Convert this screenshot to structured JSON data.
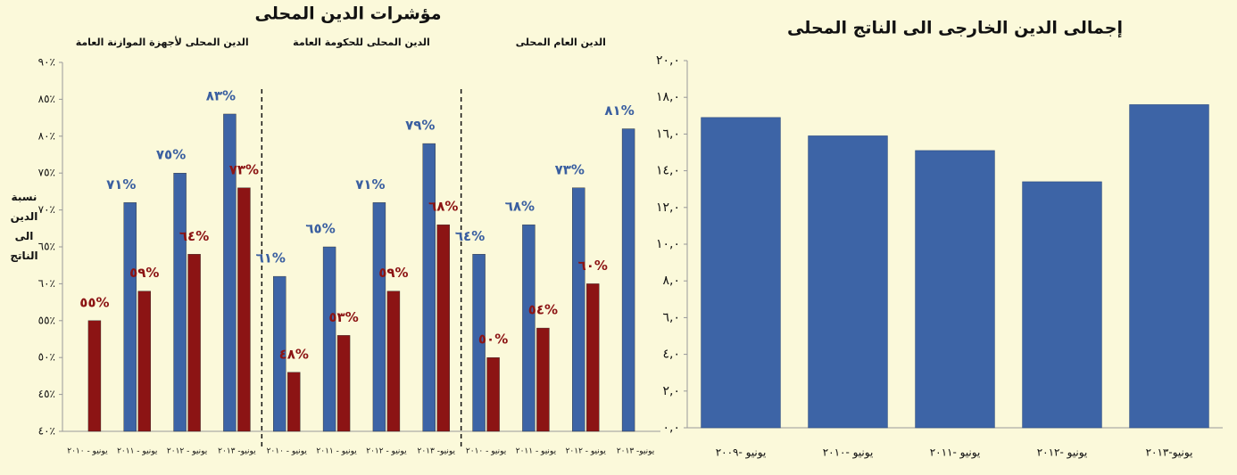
{
  "chart_data": [
    {
      "type": "bar",
      "title": "مؤشرات الدين المحلى",
      "y_label": "نسبة الدين الى الناتج",
      "sections": [
        "الدين المحلى لأجهزة الموازنة العامة",
        "الدين المحلى للحكومة العامة",
        "الدين العام المحلى"
      ],
      "categories": [
        "يونيو - ٢٠١٠",
        "يونيو - ٢٠١١",
        "يونيو - ٢٠١٢",
        "يونيو- ٢٠١٣",
        "يونيو - ٢٠١٠",
        "يونيو - ٢٠١١",
        "يونيو - ٢٠١٢",
        "يونيو- ٢٠١٣",
        "يونيو - ٢٠١٠",
        "يونيو - ٢٠١١",
        "يونيو - ٢٠١٢",
        "يونيو- ٢٠١٣"
      ],
      "series": [
        {
          "color": "#3d64a6",
          "label_color": "#3a5fa0",
          "values": [
            null,
            71,
            75,
            83,
            61,
            65,
            71,
            79,
            64,
            68,
            73,
            81
          ],
          "value_labels": [
            null,
            "٧١%",
            "٧٥%",
            "٨٣%",
            "٦١%",
            "٦٥%",
            "٧١%",
            "٧٩%",
            "٦٤%",
            "٦٨%",
            "٧٣%",
            "٨١%"
          ]
        },
        {
          "color": "#8c1414",
          "label_color": "#8c1414",
          "values": [
            55,
            59,
            64,
            73,
            48,
            53,
            59,
            68,
            50,
            54,
            60,
            null
          ],
          "value_labels": [
            "٥٥%",
            "٥٩%",
            "٦٤%",
            "٧٣%",
            "٤٨%",
            "٥٣%",
            "٥٩%",
            "٦٨%",
            "٥٠%",
            "٥٤%",
            "٦٠%",
            null
          ]
        }
      ],
      "ylim": [
        40,
        90
      ],
      "yticks": [
        {
          "value": 40,
          "label": "٤٠٪"
        },
        {
          "value": 45,
          "label": "٤٥٪"
        },
        {
          "value": 50,
          "label": "٥٠٪"
        },
        {
          "value": 55,
          "label": "٥٥٪"
        },
        {
          "value": 60,
          "label": "٦٠٪"
        },
        {
          "value": 65,
          "label": "٦٥٪"
        },
        {
          "value": 70,
          "label": "٧٠٪"
        },
        {
          "value": 75,
          "label": "٧٥٪"
        },
        {
          "value": 80,
          "label": "٨٠٪"
        },
        {
          "value": 85,
          "label": "٨٥٪"
        },
        {
          "value": 90,
          "label": "٩٠٪"
        }
      ],
      "grid": false
    },
    {
      "type": "bar",
      "title": "إجمالى الدين الخارجى الى الناتج المحلى",
      "categories": [
        "يونيو -٢٠٠٩",
        "يونيو -٢٠١٠",
        "يونيو -٢٠١١",
        "يونيو -٢٠١٢",
        "يونيو-٢٠١٣"
      ],
      "values": [
        16.9,
        15.9,
        15.1,
        13.4,
        17.6
      ],
      "color": "#3d64a6",
      "ylim": [
        0,
        20
      ],
      "yticks": [
        {
          "value": 0,
          "label": "٠,٠"
        },
        {
          "value": 2,
          "label": "٢,٠"
        },
        {
          "value": 4,
          "label": "٤,٠"
        },
        {
          "value": 6,
          "label": "٦,٠"
        },
        {
          "value": 8,
          "label": "٨,٠"
        },
        {
          "value": 10,
          "label": "١٠,٠"
        },
        {
          "value": 12,
          "label": "١٢,٠"
        },
        {
          "value": 14,
          "label": "١٤,٠"
        },
        {
          "value": 16,
          "label": "١٦,٠"
        },
        {
          "value": 18,
          "label": "١٨,٠"
        },
        {
          "value": 20,
          "label": "٢٠,٠"
        }
      ],
      "grid": false
    }
  ]
}
